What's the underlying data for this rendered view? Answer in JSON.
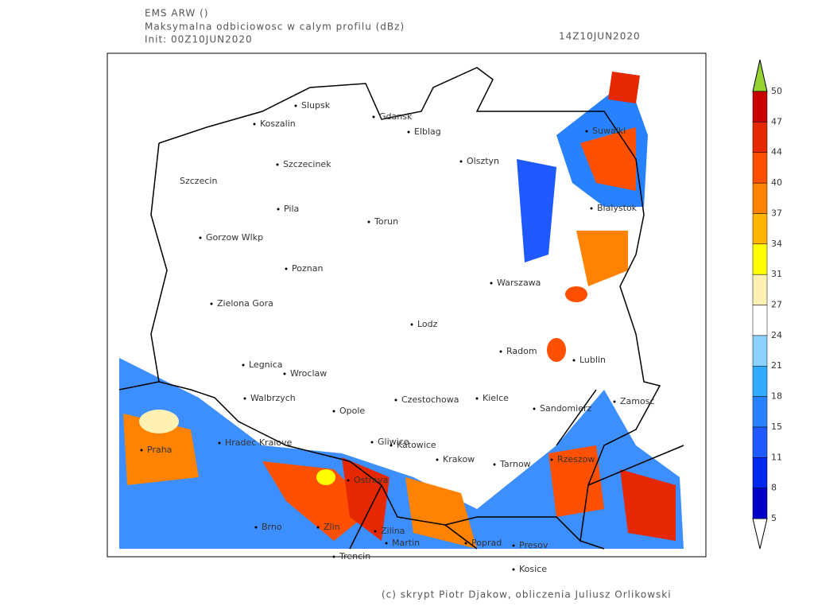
{
  "header": {
    "model": "EMS ARW ()",
    "field": "Maksymalna odbiciowosc w calym profilu (dBz)",
    "init": "Init: 00Z10JUN2020",
    "valid": "14Z10JUN2020"
  },
  "cities": [
    "Slupsk",
    "Koszalin",
    "Gdansk",
    "Elblag",
    "Suwalki",
    "Szczecinek",
    "Olsztyn",
    "Szczecin",
    "Pila",
    "Torun",
    "Bialystok",
    "Gorzow Wlkp",
    "Poznan",
    "Warszawa",
    "Zielona Gora",
    "Lodz",
    "Radom",
    "Lublin",
    "Legnica",
    "Wroclaw",
    "Walbrzych",
    "Czestochowa",
    "Kielce",
    "Zamosc",
    "Sandomierz",
    "Opole",
    "Hradec Kralove",
    "Gliwice",
    "Katowice",
    "Praha",
    "Krakow",
    "Tarnow",
    "Rzeszow",
    "Ostrava",
    "Brno",
    "Zlin",
    "Zilina",
    "Martin",
    "Poprad",
    "Presov",
    "Trencin",
    "Kosice"
  ],
  "legend": {
    "ticks": [
      5,
      8,
      11,
      15,
      18,
      21,
      24,
      27,
      31,
      34,
      37,
      40,
      44,
      47,
      50
    ],
    "colors": [
      "#0000c8",
      "#0028f0",
      "#1e5aff",
      "#2882ff",
      "#32aaff",
      "#8cd2ff",
      "#ffffff",
      "#fff0b4",
      "#ffff00",
      "#ffb400",
      "#ff8200",
      "#ff5000",
      "#e62800",
      "#c80000"
    ],
    "over_color": "#96d232",
    "under_color": "#ffffff"
  },
  "footer": "(c) skrypt Piotr Djakow, obliczenia Juliusz Orlikowski"
}
